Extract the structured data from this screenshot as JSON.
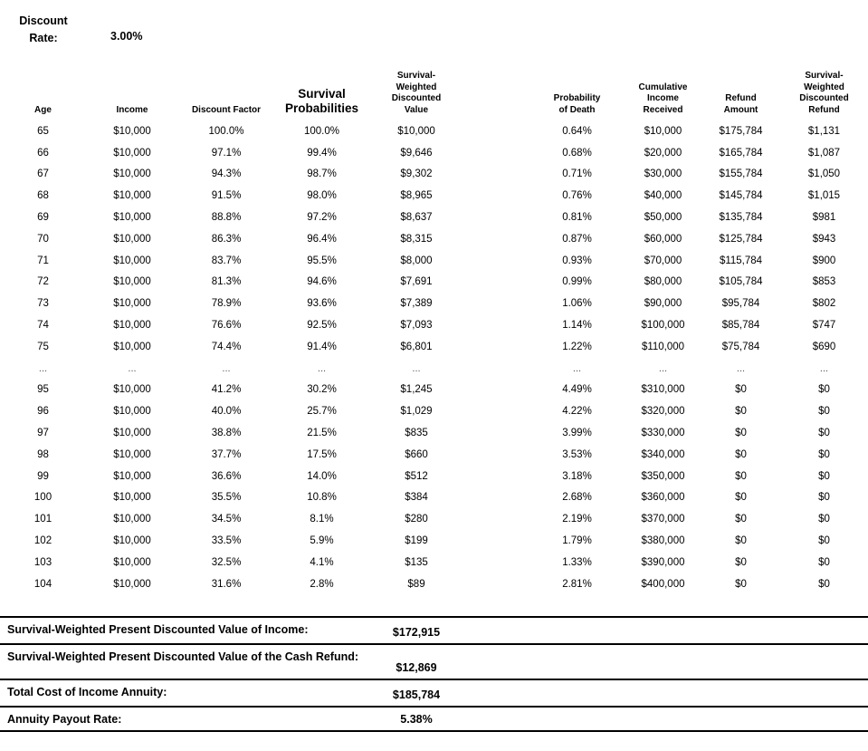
{
  "discount_rate": {
    "label": "Discount\nRate:",
    "value": "3.00%"
  },
  "table": {
    "headers": [
      "Age",
      "Income",
      "Discount Factor",
      "Survival\nProbabilities",
      "Survival-\nWeighted\nDiscounted\nValue",
      "Probability\nof Death",
      "Cumulative\nIncome\nReceived",
      "Refund\nAmount",
      "Survival-\nWeighted\nDiscounted\nRefund"
    ],
    "rows": [
      [
        "65",
        "$10,000",
        "100.0%",
        "100.0%",
        "$10,000",
        "0.64%",
        "$10,000",
        "$175,784",
        "$1,131"
      ],
      [
        "66",
        "$10,000",
        "97.1%",
        "99.4%",
        "$9,646",
        "0.68%",
        "$20,000",
        "$165,784",
        "$1,087"
      ],
      [
        "67",
        "$10,000",
        "94.3%",
        "98.7%",
        "$9,302",
        "0.71%",
        "$30,000",
        "$155,784",
        "$1,050"
      ],
      [
        "68",
        "$10,000",
        "91.5%",
        "98.0%",
        "$8,965",
        "0.76%",
        "$40,000",
        "$145,784",
        "$1,015"
      ],
      [
        "69",
        "$10,000",
        "88.8%",
        "97.2%",
        "$8,637",
        "0.81%",
        "$50,000",
        "$135,784",
        "$981"
      ],
      [
        "70",
        "$10,000",
        "86.3%",
        "96.4%",
        "$8,315",
        "0.87%",
        "$60,000",
        "$125,784",
        "$943"
      ],
      [
        "71",
        "$10,000",
        "83.7%",
        "95.5%",
        "$8,000",
        "0.93%",
        "$70,000",
        "$115,784",
        "$900"
      ],
      [
        "72",
        "$10,000",
        "81.3%",
        "94.6%",
        "$7,691",
        "0.99%",
        "$80,000",
        "$105,784",
        "$853"
      ],
      [
        "73",
        "$10,000",
        "78.9%",
        "93.6%",
        "$7,389",
        "1.06%",
        "$90,000",
        "$95,784",
        "$802"
      ],
      [
        "74",
        "$10,000",
        "76.6%",
        "92.5%",
        "$7,093",
        "1.14%",
        "$100,000",
        "$85,784",
        "$747"
      ],
      [
        "75",
        "$10,000",
        "74.4%",
        "91.4%",
        "$6,801",
        "1.22%",
        "$110,000",
        "$75,784",
        "$690"
      ],
      [
        "...",
        "...",
        "...",
        "...",
        "...",
        "...",
        "...",
        "...",
        "..."
      ],
      [
        "95",
        "$10,000",
        "41.2%",
        "30.2%",
        "$1,245",
        "4.49%",
        "$310,000",
        "$0",
        "$0"
      ],
      [
        "96",
        "$10,000",
        "40.0%",
        "25.7%",
        "$1,029",
        "4.22%",
        "$320,000",
        "$0",
        "$0"
      ],
      [
        "97",
        "$10,000",
        "38.8%",
        "21.5%",
        "$835",
        "3.99%",
        "$330,000",
        "$0",
        "$0"
      ],
      [
        "98",
        "$10,000",
        "37.7%",
        "17.5%",
        "$660",
        "3.53%",
        "$340,000",
        "$0",
        "$0"
      ],
      [
        "99",
        "$10,000",
        "36.6%",
        "14.0%",
        "$512",
        "3.18%",
        "$350,000",
        "$0",
        "$0"
      ],
      [
        "100",
        "$10,000",
        "35.5%",
        "10.8%",
        "$384",
        "2.68%",
        "$360,000",
        "$0",
        "$0"
      ],
      [
        "101",
        "$10,000",
        "34.5%",
        "8.1%",
        "$280",
        "2.19%",
        "$370,000",
        "$0",
        "$0"
      ],
      [
        "102",
        "$10,000",
        "33.5%",
        "5.9%",
        "$199",
        "1.79%",
        "$380,000",
        "$0",
        "$0"
      ],
      [
        "103",
        "$10,000",
        "32.5%",
        "4.1%",
        "$135",
        "1.33%",
        "$390,000",
        "$0",
        "$0"
      ],
      [
        "104",
        "$10,000",
        "31.6%",
        "2.8%",
        "$89",
        "2.81%",
        "$400,000",
        "$0",
        "$0"
      ]
    ]
  },
  "summary": {
    "rows": [
      {
        "label": "Survival-Weighted Present Discounted Value of Income:",
        "value": "$172,915"
      },
      {
        "label": "Survival-Weighted Present Discounted Value of the Cash Refund:",
        "value": "$12,869"
      },
      {
        "label": "Total Cost of Income Annuity:",
        "value": "$185,784"
      },
      {
        "label": "Annuity Payout Rate:",
        "value": "5.38%"
      }
    ]
  }
}
